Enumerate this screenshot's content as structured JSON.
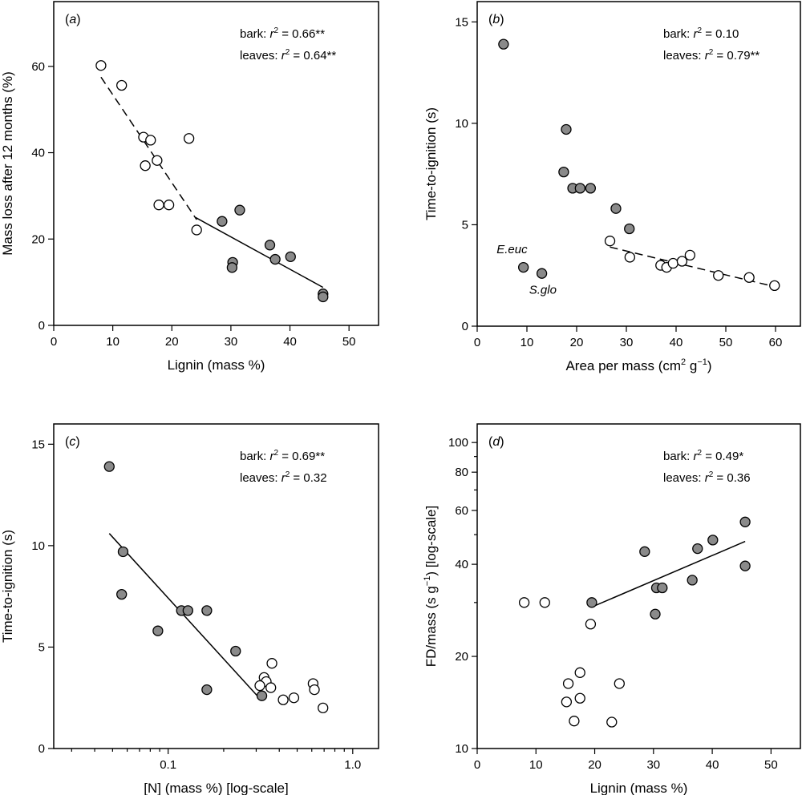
{
  "colors": {
    "bark": "#8a8a8a",
    "leaves": "#ffffff"
  },
  "chart_data": [
    {
      "id": "a",
      "type": "scatter",
      "panel_label": "a",
      "xlabel": "Lignin (mass %)",
      "ylabel": "Mass loss after 12 months (%)",
      "xscale": "linear",
      "yscale": "linear",
      "xlim": [
        0,
        55
      ],
      "ylim": [
        0,
        75
      ],
      "xticks": [
        0,
        10,
        20,
        30,
        40,
        50
      ],
      "yticks": [
        0,
        20,
        40,
        60
      ],
      "stats": [
        {
          "prefix": "bark: ",
          "sym": "r",
          "eq": " = 0.66**"
        },
        {
          "prefix": "leaves: ",
          "sym": "r",
          "eq": " = 0.64**"
        }
      ],
      "series": [
        {
          "name": "bark",
          "fill": "#8a8a8a",
          "points": [
            [
              28.5,
              24.1
            ],
            [
              31.5,
              26.7
            ],
            [
              30.3,
              14.6
            ],
            [
              30.2,
              13.4
            ],
            [
              36.6,
              18.6
            ],
            [
              37.5,
              15.3
            ],
            [
              40.1,
              15.9
            ],
            [
              45.6,
              7.3
            ],
            [
              45.6,
              6.6
            ]
          ]
        },
        {
          "name": "leaves",
          "fill": "#ffffff",
          "points": [
            [
              8.0,
              60.2
            ],
            [
              11.5,
              55.6
            ],
            [
              15.2,
              43.6
            ],
            [
              16.4,
              42.9
            ],
            [
              15.5,
              37.0
            ],
            [
              17.5,
              38.2
            ],
            [
              17.8,
              27.9
            ],
            [
              19.5,
              27.9
            ],
            [
              22.9,
              43.3
            ],
            [
              24.2,
              22.1
            ]
          ]
        }
      ],
      "fits": [
        {
          "series": "bark",
          "style": "solid",
          "x": [
            24,
            45.6
          ],
          "y": [
            25.0,
            8.8
          ]
        },
        {
          "series": "leaves",
          "style": "dashed",
          "x": [
            8,
            24.2
          ],
          "y": [
            57.5,
            24.5
          ]
        }
      ],
      "annotations": []
    },
    {
      "id": "b",
      "type": "scatter",
      "panel_label": "b",
      "xlabel": "Area per mass (cm",
      "xlabel_sup": "2",
      "xlabel_tail": " g",
      "xlabel_sup2": "−1",
      "xlabel_end": ")",
      "ylabel": "Time-to-ignition (s)",
      "xscale": "linear",
      "yscale": "linear",
      "xlim": [
        0,
        65
      ],
      "ylim": [
        0,
        16
      ],
      "xticks": [
        0,
        10,
        20,
        30,
        40,
        50,
        60
      ],
      "yticks": [
        0,
        5,
        10,
        15
      ],
      "stats": [
        {
          "prefix": "bark: ",
          "sym": "r",
          "eq": " = 0.10"
        },
        {
          "prefix": "leaves: ",
          "sym": "r",
          "eq": " = 0.79**"
        }
      ],
      "series": [
        {
          "name": "bark",
          "fill": "#8a8a8a",
          "points": [
            [
              5.3,
              13.9
            ],
            [
              17.9,
              9.7
            ],
            [
              17.4,
              7.6
            ],
            [
              19.2,
              6.8
            ],
            [
              20.7,
              6.8
            ],
            [
              22.8,
              6.8
            ],
            [
              27.9,
              5.8
            ],
            [
              30.6,
              4.8
            ],
            [
              9.3,
              2.9
            ],
            [
              13.0,
              2.6
            ]
          ]
        },
        {
          "name": "leaves",
          "fill": "#ffffff",
          "points": [
            [
              26.7,
              4.2
            ],
            [
              30.7,
              3.4
            ],
            [
              36.9,
              3.0
            ],
            [
              38.1,
              2.9
            ],
            [
              39.4,
              3.1
            ],
            [
              41.2,
              3.2
            ],
            [
              42.8,
              3.5
            ],
            [
              48.5,
              2.5
            ],
            [
              54.7,
              2.4
            ],
            [
              59.8,
              2.0
            ]
          ]
        }
      ],
      "fits": [
        {
          "series": "leaves",
          "style": "dashed",
          "x": [
            26.7,
            59.8
          ],
          "y": [
            3.9,
            1.95
          ]
        }
      ],
      "annotations": [
        {
          "text": "E.euc",
          "x": 7.0,
          "y": 3.6
        },
        {
          "text": "S.glo",
          "x": 13.2,
          "y": 1.6
        }
      ]
    },
    {
      "id": "c",
      "type": "scatter",
      "panel_label": "c",
      "xlabel": "[N] (mass %) [log-scale]",
      "ylabel": "Time-to-ignition (s)",
      "xscale": "log",
      "yscale": "linear",
      "xlim": [
        0.024,
        1.38
      ],
      "ylim": [
        0,
        16
      ],
      "xticks": [
        0.1,
        1.0
      ],
      "xtick_labels": [
        "0.1",
        "1.0"
      ],
      "xminor": [
        0.03,
        0.04,
        0.05,
        0.06,
        0.07,
        0.08,
        0.09,
        0.2,
        0.3,
        0.4,
        0.5,
        0.6,
        0.7,
        0.8,
        0.9
      ],
      "yticks": [
        0,
        5,
        10,
        15
      ],
      "stats": [
        {
          "prefix": "bark: ",
          "sym": "r",
          "eq": " = 0.69**"
        },
        {
          "prefix": "leaves: ",
          "sym": "r",
          "eq": " = 0.32"
        }
      ],
      "series": [
        {
          "name": "bark",
          "fill": "#8a8a8a",
          "points": [
            [
              0.048,
              13.9
            ],
            [
              0.057,
              9.7
            ],
            [
              0.056,
              7.6
            ],
            [
              0.088,
              5.8
            ],
            [
              0.118,
              6.8
            ],
            [
              0.128,
              6.8
            ],
            [
              0.162,
              6.8
            ],
            [
              0.162,
              2.9
            ],
            [
              0.232,
              4.8
            ],
            [
              0.322,
              2.6
            ]
          ]
        },
        {
          "name": "leaves",
          "fill": "#ffffff",
          "points": [
            [
              0.365,
              4.2
            ],
            [
              0.331,
              3.5
            ],
            [
              0.34,
              3.3
            ],
            [
              0.314,
              3.1
            ],
            [
              0.36,
              3.0
            ],
            [
              0.42,
              2.4
            ],
            [
              0.48,
              2.5
            ],
            [
              0.61,
              3.2
            ],
            [
              0.62,
              2.9
            ],
            [
              0.69,
              2.0
            ]
          ]
        }
      ],
      "fits": [
        {
          "series": "bark",
          "style": "solid",
          "x": [
            0.048,
            0.322
          ],
          "y": [
            10.6,
            2.35
          ]
        }
      ],
      "annotations": []
    },
    {
      "id": "d",
      "type": "scatter",
      "panel_label": "d",
      "xlabel": "Lignin (mass %)",
      "ylabel": "FD/mass (s g",
      "ylabel_sup": "−1",
      "ylabel_tail": ") [log-scale]",
      "xscale": "linear",
      "yscale": "log",
      "xlim": [
        0,
        55
      ],
      "ylim": [
        10,
        115
      ],
      "xticks": [
        0,
        10,
        20,
        30,
        40,
        50
      ],
      "yticks": [
        10,
        20,
        40,
        60,
        80,
        100
      ],
      "yminor": [
        30,
        50,
        70,
        90
      ],
      "stats": [
        {
          "prefix": "bark: ",
          "sym": "r",
          "eq": " = 0.49*"
        },
        {
          "prefix": "leaves: ",
          "sym": "r",
          "eq": " = 0.36"
        }
      ],
      "series": [
        {
          "name": "bark",
          "fill": "#8a8a8a",
          "points": [
            [
              19.5,
              30.0
            ],
            [
              28.5,
              44.0
            ],
            [
              30.3,
              27.5
            ],
            [
              30.5,
              33.5
            ],
            [
              31.5,
              33.5
            ],
            [
              36.6,
              35.5
            ],
            [
              37.5,
              45.0
            ],
            [
              40.1,
              48.0
            ],
            [
              45.6,
              55.0
            ],
            [
              45.6,
              39.5
            ]
          ]
        },
        {
          "name": "leaves",
          "fill": "#ffffff",
          "points": [
            [
              8.0,
              30.0
            ],
            [
              11.5,
              30.0
            ],
            [
              19.3,
              25.5
            ],
            [
              15.5,
              16.3
            ],
            [
              17.5,
              17.7
            ],
            [
              15.2,
              14.2
            ],
            [
              17.5,
              14.6
            ],
            [
              16.5,
              12.3
            ],
            [
              24.2,
              16.3
            ],
            [
              22.9,
              12.2
            ]
          ]
        }
      ],
      "fits": [
        {
          "series": "bark",
          "style": "solid",
          "x": [
            19.5,
            45.6
          ],
          "y": [
            29.0,
            47.5
          ]
        }
      ],
      "annotations": []
    }
  ]
}
